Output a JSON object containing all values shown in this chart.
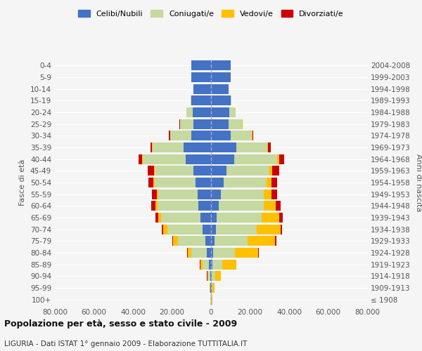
{
  "age_groups": [
    "100+",
    "95-99",
    "90-94",
    "85-89",
    "80-84",
    "75-79",
    "70-74",
    "65-69",
    "60-64",
    "55-59",
    "50-54",
    "45-49",
    "40-44",
    "35-39",
    "30-34",
    "25-29",
    "20-24",
    "15-19",
    "10-14",
    "5-9",
    "0-4"
  ],
  "birth_years": [
    "≤ 1908",
    "1909-1913",
    "1914-1918",
    "1919-1923",
    "1924-1928",
    "1929-1933",
    "1934-1938",
    "1939-1943",
    "1944-1948",
    "1949-1953",
    "1954-1958",
    "1959-1963",
    "1964-1968",
    "1969-1973",
    "1974-1978",
    "1979-1983",
    "1984-1988",
    "1989-1993",
    "1994-1998",
    "1999-2003",
    "2004-2008"
  ],
  "colors": {
    "celibi": "#4472C4",
    "coniugati": "#c5d9a0",
    "vedovi": "#ffc000",
    "divorziati": "#cc0000"
  },
  "males": {
    "celibi": [
      100,
      200,
      500,
      1000,
      2000,
      3000,
      4500,
      5500,
      6500,
      7000,
      8000,
      9000,
      13000,
      14000,
      10000,
      9000,
      9500,
      10000,
      9000,
      10000,
      10000
    ],
    "coniugati": [
      100,
      300,
      1000,
      3500,
      8000,
      14000,
      18000,
      20000,
      21000,
      20000,
      21000,
      20000,
      22000,
      16000,
      11000,
      7000,
      3000,
      500,
      100,
      50,
      50
    ],
    "vedovi": [
      100,
      200,
      400,
      1000,
      2000,
      2500,
      2000,
      1500,
      1000,
      700,
      500,
      300,
      200,
      100,
      50,
      20,
      10,
      5,
      2,
      1,
      1
    ],
    "divorziati": [
      50,
      50,
      100,
      200,
      300,
      400,
      800,
      1500,
      2000,
      2500,
      2500,
      3000,
      2000,
      1000,
      500,
      200,
      100,
      30,
      10,
      5,
      2
    ]
  },
  "females": {
    "celibi": [
      100,
      200,
      500,
      800,
      1200,
      1800,
      2500,
      3000,
      4000,
      5000,
      6500,
      8000,
      12000,
      13000,
      10000,
      9000,
      9500,
      10000,
      9000,
      10000,
      10000
    ],
    "coniugati": [
      200,
      500,
      1500,
      5000,
      11000,
      17000,
      21000,
      23000,
      23000,
      22000,
      22000,
      22000,
      22000,
      16000,
      11000,
      7000,
      3000,
      500,
      100,
      50,
      50
    ],
    "vedovi": [
      500,
      1200,
      3000,
      7000,
      12000,
      14000,
      12000,
      9000,
      6000,
      4000,
      2500,
      1500,
      800,
      300,
      100,
      40,
      15,
      5,
      2,
      1,
      1
    ],
    "divorziati": [
      30,
      50,
      100,
      200,
      400,
      600,
      1000,
      1800,
      2500,
      3000,
      3000,
      3500,
      2500,
      1200,
      600,
      250,
      100,
      30,
      10,
      5,
      2
    ]
  },
  "xlim": 80000,
  "title": "Popolazione per età, sesso e stato civile - 2009",
  "subtitle": "LIGURIA - Dati ISTAT 1° gennaio 2009 - Elaborazione TUTTITALIA.IT",
  "ylabel": "Fasce di età",
  "ylabel_right": "Anni di nascita",
  "bg_color": "#f5f5f5",
  "plot_bg": "#f5f5f5",
  "grid_color": "#ffffff",
  "tick_color": "#888888"
}
